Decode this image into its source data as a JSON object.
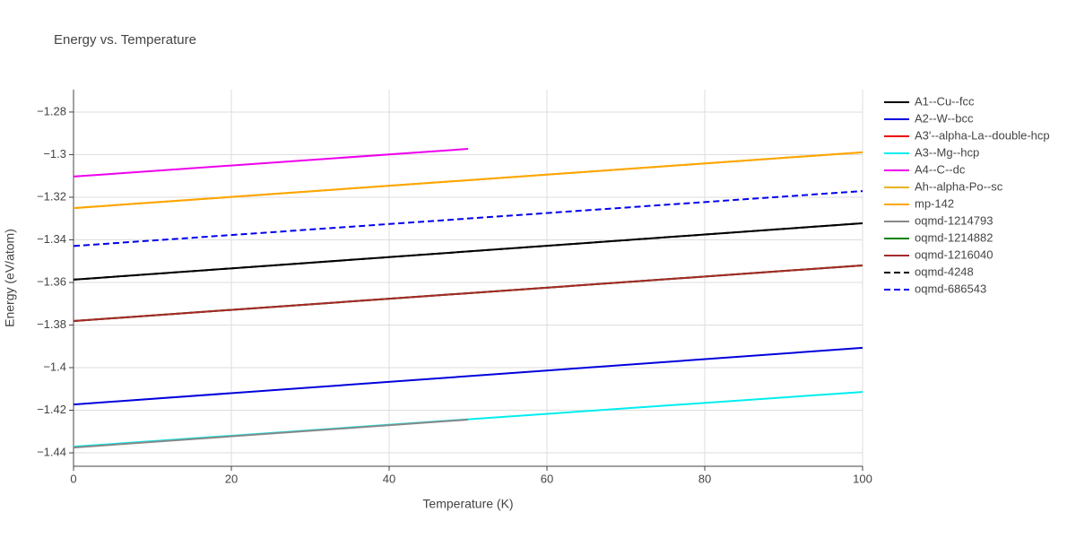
{
  "chart_data": {
    "type": "line",
    "title": "Energy vs. Temperature",
    "x_label": "Temperature (K)",
    "y_label": "Energy (eV/atom)",
    "xlim": [
      0,
      100
    ],
    "xticks": [
      0,
      20,
      40,
      60,
      80,
      100
    ],
    "ylim": [
      -1.4463,
      -1.2695
    ],
    "yticks": [
      {
        "value": -1.44,
        "label": "−1.44"
      },
      {
        "value": -1.42,
        "label": "−1.42"
      },
      {
        "value": -1.4,
        "label": "−1.4"
      },
      {
        "value": -1.38,
        "label": "−1.38"
      },
      {
        "value": -1.36,
        "label": "−1.36"
      },
      {
        "value": -1.34,
        "label": "−1.34"
      },
      {
        "value": -1.32,
        "label": "−1.32"
      },
      {
        "value": -1.3,
        "label": "−1.3"
      },
      {
        "value": -1.28,
        "label": "−1.28"
      }
    ],
    "grid": true,
    "legend": "right",
    "series": [
      {
        "name": "A1--Cu--fcc",
        "color": "#000000",
        "dash": false,
        "x": [
          0,
          100
        ],
        "values": [
          -1.3587,
          -1.3322
        ]
      },
      {
        "name": "A2--W--bcc",
        "color": "#0000dd",
        "dash": false,
        "x": [
          0,
          100
        ],
        "values": [
          -1.4173,
          -1.3907
        ]
      },
      {
        "name": "A3'--alpha-La--double-hcp",
        "color": "#ee0000",
        "dash": false,
        "x": [
          0,
          100
        ],
        "values": [
          -1.3781,
          -1.352
        ]
      },
      {
        "name": "A3--Mg--hcp",
        "color": "#00eeee",
        "dash": false,
        "x": [
          0,
          100
        ],
        "values": [
          -1.4371,
          -1.4114
        ]
      },
      {
        "name": "A4--C--dc",
        "color": "#ee00ee",
        "dash": false,
        "x": [
          0,
          50
        ],
        "values": [
          -1.3103,
          -1.2973
        ]
      },
      {
        "name": "Ah--alpha-Po--sc",
        "color": "#e6b422",
        "dash": false,
        "x": [
          0,
          100
        ],
        "values": [
          -1.3251,
          -1.2989
        ]
      },
      {
        "name": "mp-142",
        "color": "#ffa500",
        "dash": false,
        "x": [
          0,
          100
        ],
        "values": [
          -1.3251,
          -1.2989
        ]
      },
      {
        "name": "oqmd-1214793",
        "color": "#888888",
        "dash": false,
        "x": [
          0,
          50
        ],
        "values": [
          -1.4375,
          -1.4244
        ]
      },
      {
        "name": "oqmd-1214882",
        "color": "#008000",
        "dash": false,
        "x": [
          0,
          100
        ],
        "values": [
          -1.3781,
          -1.352
        ]
      },
      {
        "name": "oqmd-1216040",
        "color": "#a52a2a",
        "dash": false,
        "x": [
          0,
          100
        ],
        "values": [
          -1.3781,
          -1.352
        ]
      },
      {
        "name": "oqmd-4248",
        "color": "#000000",
        "dash": true,
        "x": [
          0,
          100
        ],
        "values": [
          -1.3587,
          -1.3322
        ]
      },
      {
        "name": "oqmd-686543",
        "color": "#0000ee",
        "dash": true,
        "x": [
          0,
          100
        ],
        "values": [
          -1.3429,
          -1.3171
        ]
      }
    ]
  }
}
